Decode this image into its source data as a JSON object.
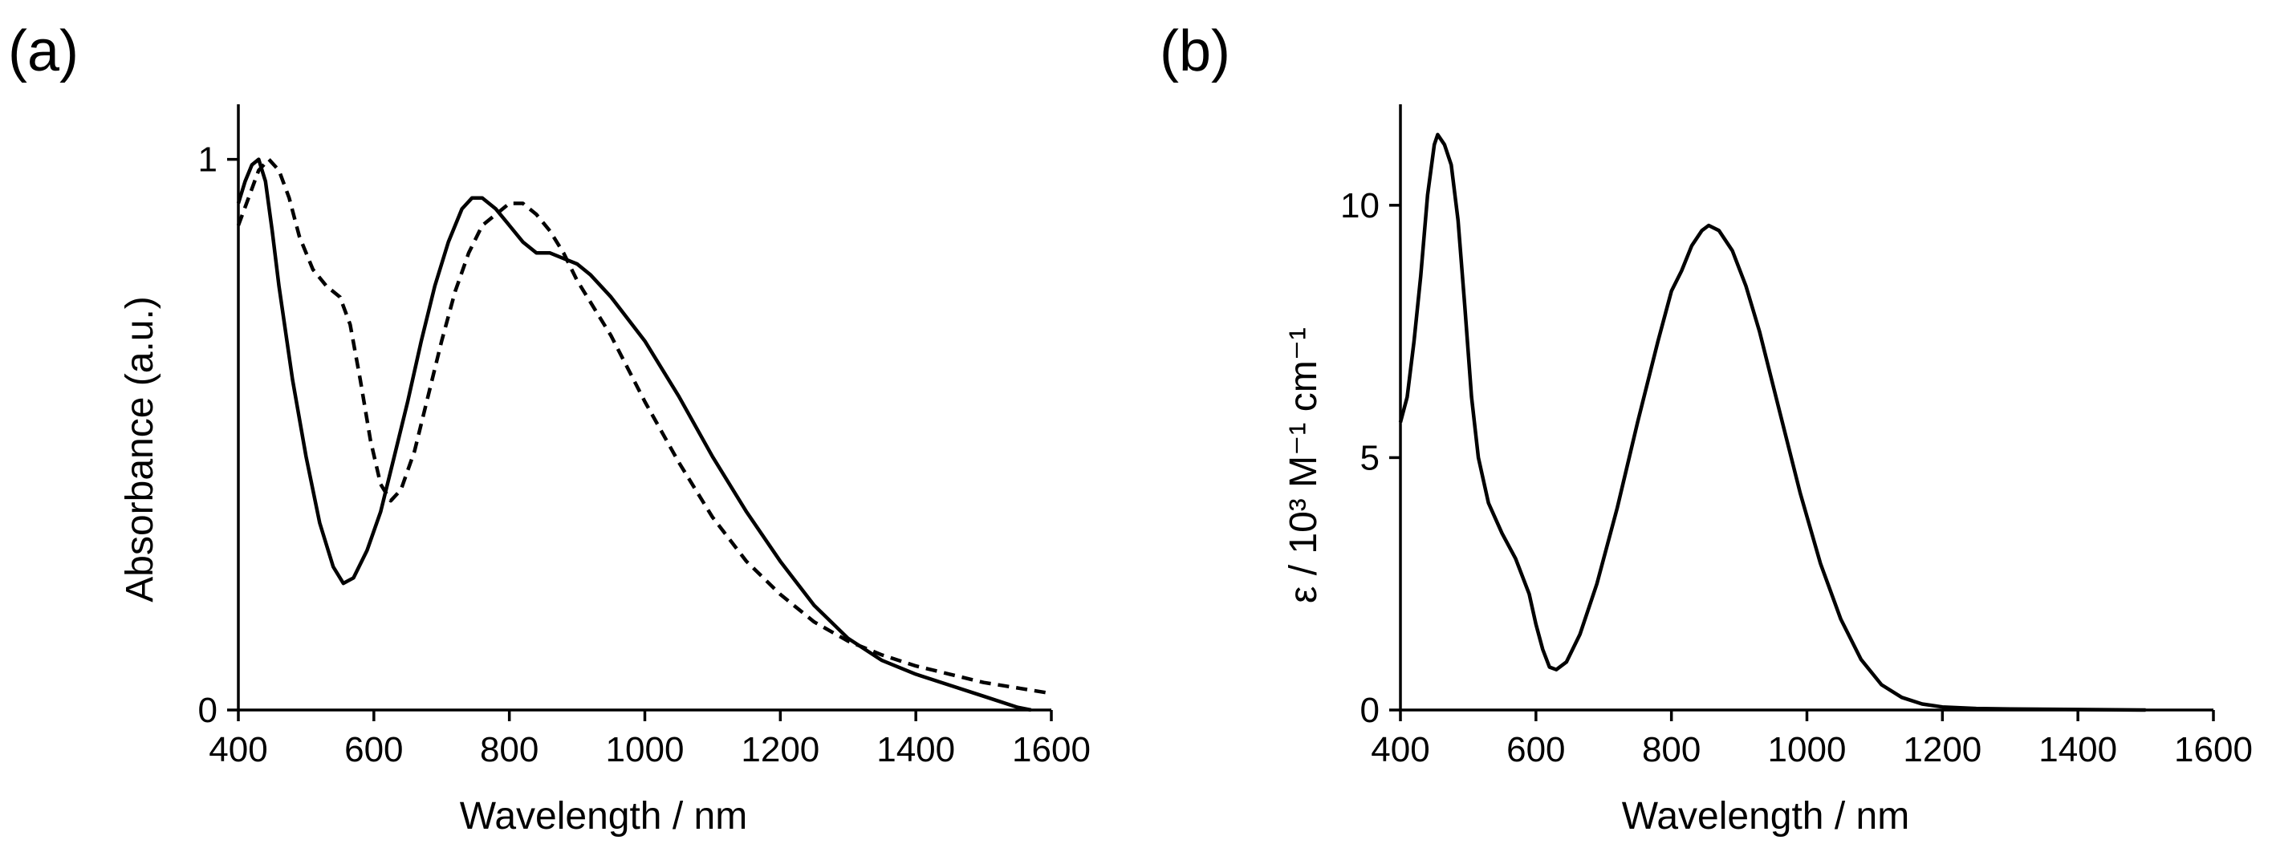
{
  "chart_data": [
    {
      "panel_label": "(a)",
      "type": "line",
      "xlabel": "Wavelength / nm",
      "ylabel": "Absorbance (a.u.)",
      "xlim": [
        400,
        1600
      ],
      "ylim": [
        0,
        1.1
      ],
      "xticks": [
        400,
        600,
        800,
        1000,
        1200,
        1400,
        1600
      ],
      "yticks": [
        0,
        1
      ],
      "series": [
        {
          "name": "solid",
          "style": "solid",
          "points": [
            [
              400,
              0.92
            ],
            [
              410,
              0.96
            ],
            [
              420,
              0.99
            ],
            [
              430,
              1.0
            ],
            [
              440,
              0.96
            ],
            [
              450,
              0.87
            ],
            [
              460,
              0.77
            ],
            [
              480,
              0.6
            ],
            [
              500,
              0.46
            ],
            [
              520,
              0.34
            ],
            [
              540,
              0.26
            ],
            [
              555,
              0.23
            ],
            [
              570,
              0.24
            ],
            [
              590,
              0.29
            ],
            [
              610,
              0.36
            ],
            [
              630,
              0.46
            ],
            [
              650,
              0.56
            ],
            [
              670,
              0.67
            ],
            [
              690,
              0.77
            ],
            [
              710,
              0.85
            ],
            [
              730,
              0.91
            ],
            [
              745,
              0.93
            ],
            [
              760,
              0.93
            ],
            [
              780,
              0.91
            ],
            [
              800,
              0.88
            ],
            [
              820,
              0.85
            ],
            [
              840,
              0.83
            ],
            [
              860,
              0.83
            ],
            [
              880,
              0.82
            ],
            [
              900,
              0.81
            ],
            [
              920,
              0.79
            ],
            [
              950,
              0.75
            ],
            [
              1000,
              0.67
            ],
            [
              1050,
              0.57
            ],
            [
              1100,
              0.46
            ],
            [
              1150,
              0.36
            ],
            [
              1200,
              0.27
            ],
            [
              1250,
              0.19
            ],
            [
              1300,
              0.13
            ],
            [
              1350,
              0.09
            ],
            [
              1400,
              0.065
            ],
            [
              1450,
              0.045
            ],
            [
              1500,
              0.025
            ],
            [
              1550,
              0.005
            ],
            [
              1570,
              0.0
            ]
          ]
        },
        {
          "name": "dashed",
          "style": "dashed",
          "points": [
            [
              400,
              0.88
            ],
            [
              415,
              0.93
            ],
            [
              430,
              0.98
            ],
            [
              445,
              1.0
            ],
            [
              460,
              0.98
            ],
            [
              475,
              0.93
            ],
            [
              490,
              0.86
            ],
            [
              510,
              0.8
            ],
            [
              530,
              0.77
            ],
            [
              550,
              0.75
            ],
            [
              565,
              0.7
            ],
            [
              580,
              0.6
            ],
            [
              595,
              0.49
            ],
            [
              610,
              0.41
            ],
            [
              625,
              0.38
            ],
            [
              640,
              0.4
            ],
            [
              660,
              0.47
            ],
            [
              680,
              0.57
            ],
            [
              700,
              0.67
            ],
            [
              720,
              0.76
            ],
            [
              740,
              0.83
            ],
            [
              760,
              0.88
            ],
            [
              780,
              0.9
            ],
            [
              800,
              0.92
            ],
            [
              820,
              0.92
            ],
            [
              840,
              0.9
            ],
            [
              860,
              0.87
            ],
            [
              880,
              0.83
            ],
            [
              900,
              0.78
            ],
            [
              950,
              0.68
            ],
            [
              1000,
              0.56
            ],
            [
              1050,
              0.45
            ],
            [
              1100,
              0.35
            ],
            [
              1150,
              0.27
            ],
            [
              1200,
              0.21
            ],
            [
              1250,
              0.16
            ],
            [
              1300,
              0.125
            ],
            [
              1350,
              0.1
            ],
            [
              1400,
              0.08
            ],
            [
              1450,
              0.065
            ],
            [
              1500,
              0.05
            ],
            [
              1550,
              0.04
            ],
            [
              1600,
              0.03
            ]
          ]
        }
      ]
    },
    {
      "panel_label": "(b)",
      "type": "line",
      "xlabel": "Wavelength / nm",
      "ylabel": "ε / 10³ M⁻¹ cm⁻¹",
      "xlim": [
        400,
        1600
      ],
      "ylim": [
        0,
        12
      ],
      "xticks": [
        400,
        600,
        800,
        1000,
        1200,
        1400,
        1600
      ],
      "yticks": [
        0,
        5,
        10
      ],
      "series": [
        {
          "name": "solid",
          "style": "solid",
          "points": [
            [
              400,
              5.7
            ],
            [
              410,
              6.2
            ],
            [
              420,
              7.3
            ],
            [
              430,
              8.6
            ],
            [
              440,
              10.2
            ],
            [
              450,
              11.2
            ],
            [
              455,
              11.4
            ],
            [
              465,
              11.2
            ],
            [
              475,
              10.8
            ],
            [
              485,
              9.7
            ],
            [
              495,
              8.0
            ],
            [
              505,
              6.2
            ],
            [
              515,
              5.0
            ],
            [
              530,
              4.1
            ],
            [
              550,
              3.5
            ],
            [
              570,
              3.0
            ],
            [
              590,
              2.3
            ],
            [
              600,
              1.7
            ],
            [
              610,
              1.2
            ],
            [
              620,
              0.85
            ],
            [
              630,
              0.8
            ],
            [
              645,
              0.95
            ],
            [
              665,
              1.5
            ],
            [
              690,
              2.5
            ],
            [
              720,
              4.0
            ],
            [
              750,
              5.7
            ],
            [
              780,
              7.3
            ],
            [
              800,
              8.3
            ],
            [
              815,
              8.7
            ],
            [
              830,
              9.2
            ],
            [
              845,
              9.5
            ],
            [
              855,
              9.6
            ],
            [
              870,
              9.5
            ],
            [
              890,
              9.1
            ],
            [
              910,
              8.4
            ],
            [
              930,
              7.5
            ],
            [
              960,
              5.9
            ],
            [
              990,
              4.3
            ],
            [
              1020,
              2.9
            ],
            [
              1050,
              1.8
            ],
            [
              1080,
              1.0
            ],
            [
              1110,
              0.5
            ],
            [
              1140,
              0.25
            ],
            [
              1170,
              0.12
            ],
            [
              1200,
              0.06
            ],
            [
              1250,
              0.03
            ],
            [
              1300,
              0.02
            ],
            [
              1400,
              0.01
            ],
            [
              1500,
              0.0
            ]
          ]
        }
      ]
    }
  ]
}
